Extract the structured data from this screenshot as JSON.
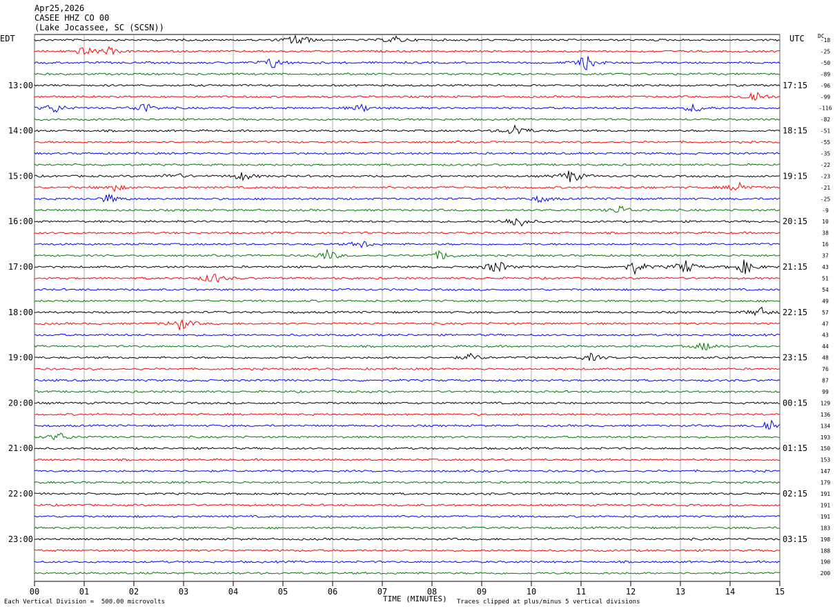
{
  "header": {
    "date": "Apr25,2026",
    "station": "CASEE HHZ CO 00",
    "location": "(Lake Jocassee, SC (SCSN))"
  },
  "left_tz": "EDT",
  "right_tz": "UTC",
  "dc_label": "DC",
  "footer": {
    "scale_note": "Each Vertical Division =  500.00 microvolts",
    "clip_note": "Traces clipped at plus/minus 5 vertical divisions"
  },
  "chart_data": {
    "type": "line",
    "xlabel": "TIME (MINUTES)",
    "xlim": [
      0,
      15
    ],
    "x_ticks": [
      "00",
      "01",
      "02",
      "03",
      "04",
      "05",
      "06",
      "07",
      "08",
      "09",
      "10",
      "11",
      "12",
      "13",
      "14",
      "15"
    ],
    "trace_colors": [
      "#000000",
      "#ff0000",
      "#0000ff",
      "#007a00"
    ],
    "left_hour_labels": [
      "13:00",
      "14:00",
      "15:00",
      "16:00",
      "17:00",
      "18:00",
      "19:00",
      "20:00",
      "21:00",
      "22:00",
      "23:00"
    ],
    "right_hour_labels": [
      "17:15",
      "18:15",
      "19:15",
      "20:15",
      "21:15",
      "22:15",
      "23:15",
      "00:15",
      "01:15",
      "02:15",
      "03:15"
    ],
    "dc_offsets": [
      "-18",
      "-25",
      "-50",
      "-89",
      "-96",
      "-99",
      "-116",
      "-82",
      "-51",
      "-55",
      "-35",
      "-22",
      "-23",
      "-21",
      "-25",
      "-9",
      "10",
      "38",
      "16",
      "37",
      "43",
      "51",
      "54",
      "49",
      "57",
      "47",
      "43",
      "44",
      "48",
      "76",
      "87",
      "99",
      "129",
      "136",
      "134",
      "193",
      "150",
      "153",
      "147",
      "179",
      "191",
      "191",
      "191",
      "183",
      "198",
      "188",
      "190",
      "200"
    ],
    "events": [
      {
        "trace": 0,
        "minute": 5.3,
        "amp": 1.0
      },
      {
        "trace": 0,
        "minute": 7.25,
        "amp": 0.5
      },
      {
        "trace": 1,
        "minute": 1.0,
        "amp": 0.6
      },
      {
        "trace": 1,
        "minute": 1.5,
        "amp": 0.45
      },
      {
        "trace": 2,
        "minute": 4.8,
        "amp": 0.8
      },
      {
        "trace": 2,
        "minute": 11.1,
        "amp": 1.0
      },
      {
        "trace": 5,
        "minute": 14.5,
        "amp": 0.9
      },
      {
        "trace": 6,
        "minute": 0.4,
        "amp": 0.7
      },
      {
        "trace": 6,
        "minute": 2.2,
        "amp": 0.8
      },
      {
        "trace": 6,
        "minute": 6.6,
        "amp": 0.5
      },
      {
        "trace": 6,
        "minute": 13.3,
        "amp": 0.6
      },
      {
        "trace": 8,
        "minute": 9.7,
        "amp": 0.9
      },
      {
        "trace": 12,
        "minute": 2.8,
        "amp": 0.5
      },
      {
        "trace": 12,
        "minute": 4.2,
        "amp": 0.6
      },
      {
        "trace": 12,
        "minute": 10.8,
        "amp": 1.0
      },
      {
        "trace": 13,
        "minute": 1.6,
        "amp": 0.5
      },
      {
        "trace": 13,
        "minute": 14.2,
        "amp": 0.8
      },
      {
        "trace": 14,
        "minute": 1.5,
        "amp": 0.6
      },
      {
        "trace": 14,
        "minute": 10.2,
        "amp": 0.5
      },
      {
        "trace": 15,
        "minute": 11.8,
        "amp": 0.6
      },
      {
        "trace": 16,
        "minute": 9.7,
        "amp": 1.0
      },
      {
        "trace": 18,
        "minute": 6.6,
        "amp": 0.5
      },
      {
        "trace": 19,
        "minute": 5.9,
        "amp": 0.8
      },
      {
        "trace": 19,
        "minute": 8.2,
        "amp": 0.7
      },
      {
        "trace": 20,
        "minute": 9.3,
        "amp": 1.0
      },
      {
        "trace": 20,
        "minute": 12.1,
        "amp": 0.9
      },
      {
        "trace": 20,
        "minute": 13.1,
        "amp": 1.0
      },
      {
        "trace": 20,
        "minute": 14.3,
        "amp": 1.0
      },
      {
        "trace": 21,
        "minute": 3.6,
        "amp": 0.8
      },
      {
        "trace": 24,
        "minute": 14.6,
        "amp": 0.7
      },
      {
        "trace": 25,
        "minute": 2.95,
        "amp": 0.9
      },
      {
        "trace": 27,
        "minute": 13.5,
        "amp": 0.6
      },
      {
        "trace": 28,
        "minute": 8.8,
        "amp": 0.5
      },
      {
        "trace": 28,
        "minute": 11.2,
        "amp": 0.5
      },
      {
        "trace": 34,
        "minute": 14.8,
        "amp": 1.0
      },
      {
        "trace": 35,
        "minute": 0.5,
        "amp": 0.6
      }
    ]
  }
}
